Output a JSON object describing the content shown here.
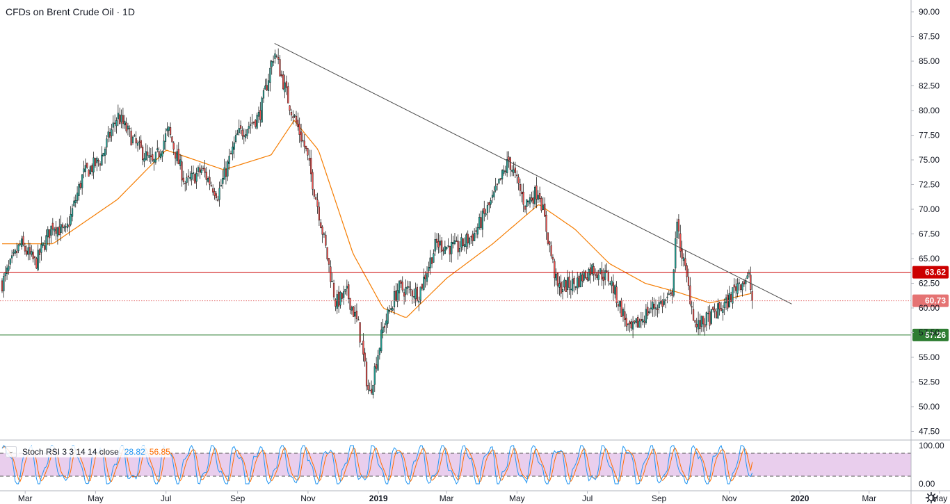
{
  "title": "CFDs on Brent Crude Oil · 1D",
  "colors": {
    "up": "#26a69a",
    "down": "#ef5350",
    "ma": "#f57c00",
    "trendline": "#4a4a4a",
    "resistance": "#cc0000",
    "support": "#2e7d32",
    "last_price": "#e57373",
    "stoch_k": "#2196f3",
    "stoch_d": "#ff6d00",
    "stoch_band": "#e1bee7"
  },
  "chart_data": [
    {
      "type": "candlestick",
      "title": "CFDs on Brent Crude Oil · 1D",
      "ylim": [
        46,
        91
      ],
      "y_ticks": [
        "47.50",
        "50.00",
        "52.50",
        "55.00",
        "57.50",
        "60.00",
        "62.50",
        "65.00",
        "67.50",
        "70.00",
        "72.50",
        "75.00",
        "77.50",
        "80.00",
        "82.50",
        "85.00",
        "87.50",
        "90.00"
      ],
      "x_ticks": [
        "Mar",
        "May",
        "Jul",
        "Sep",
        "Nov",
        "2019",
        "Mar",
        "May",
        "Jul",
        "Sep",
        "Nov",
        "2020",
        "Mar",
        "May"
      ],
      "price_path": [
        [
          "2018-02-09",
          62.5
        ],
        [
          "2018-02-25",
          66.5
        ],
        [
          "2018-03-10",
          64.5
        ],
        [
          "2018-03-25",
          68.5
        ],
        [
          "2018-04-05",
          67.5
        ],
        [
          "2018-04-20",
          73.5
        ],
        [
          "2018-05-05",
          75.0
        ],
        [
          "2018-05-20",
          79.5
        ],
        [
          "2018-06-05",
          76.5
        ],
        [
          "2018-06-20",
          74.5
        ],
        [
          "2018-07-03",
          78.0
        ],
        [
          "2018-07-18",
          72.5
        ],
        [
          "2018-08-01",
          74.0
        ],
        [
          "2018-08-15",
          71.5
        ],
        [
          "2018-09-01",
          77.5
        ],
        [
          "2018-09-20",
          79.5
        ],
        [
          "2018-10-03",
          86.0
        ],
        [
          "2018-10-15",
          81.0
        ],
        [
          "2018-10-30",
          76.0
        ],
        [
          "2018-11-10",
          70.0
        ],
        [
          "2018-11-25",
          60.5
        ],
        [
          "2018-12-05",
          61.5
        ],
        [
          "2018-12-15",
          58.0
        ],
        [
          "2018-12-24",
          51.0
        ],
        [
          "2019-01-05",
          58.0
        ],
        [
          "2019-01-18",
          62.0
        ],
        [
          "2019-02-05",
          61.5
        ],
        [
          "2019-02-20",
          66.5
        ],
        [
          "2019-03-10",
          66.0
        ],
        [
          "2019-03-25",
          67.5
        ],
        [
          "2019-04-10",
          71.0
        ],
        [
          "2019-04-24",
          75.0
        ],
        [
          "2019-05-08",
          70.5
        ],
        [
          "2019-05-20",
          72.0
        ],
        [
          "2019-06-05",
          62.0
        ],
        [
          "2019-06-20",
          62.5
        ],
        [
          "2019-07-05",
          64.0
        ],
        [
          "2019-07-20",
          63.0
        ],
        [
          "2019-08-07",
          57.5
        ],
        [
          "2019-08-25",
          60.0
        ],
        [
          "2019-09-12",
          61.0
        ],
        [
          "2019-09-16",
          68.5
        ],
        [
          "2019-10-03",
          58.0
        ],
        [
          "2019-10-15",
          59.0
        ],
        [
          "2019-10-30",
          60.5
        ],
        [
          "2019-11-08",
          62.5
        ],
        [
          "2019-11-18",
          63.0
        ],
        [
          "2019-11-21",
          60.73
        ]
      ],
      "ma_path": [
        [
          "2018-02-09",
          66.5
        ],
        [
          "2018-03-25",
          66.5
        ],
        [
          "2018-05-20",
          71.0
        ],
        [
          "2018-07-01",
          76.0
        ],
        [
          "2018-08-20",
          74.0
        ],
        [
          "2018-09-30",
          75.5
        ],
        [
          "2018-10-20",
          79.0
        ],
        [
          "2018-11-10",
          76.0
        ],
        [
          "2018-12-10",
          65.5
        ],
        [
          "2019-01-05",
          60.0
        ],
        [
          "2019-01-25",
          59.0
        ],
        [
          "2019-03-01",
          63.0
        ],
        [
          "2019-04-10",
          66.5
        ],
        [
          "2019-05-20",
          70.5
        ],
        [
          "2019-06-20",
          68.0
        ],
        [
          "2019-07-20",
          64.5
        ],
        [
          "2019-08-20",
          62.5
        ],
        [
          "2019-09-20",
          61.5
        ],
        [
          "2019-10-15",
          60.5
        ],
        [
          "2019-11-21",
          61.5
        ]
      ],
      "trendline": {
        "start": [
          "2018-10-03",
          86.8
        ],
        "end": [
          "2019-12-25",
          60.4
        ]
      },
      "levels": [
        {
          "name": "resistance",
          "value": 63.62,
          "label": "63.62"
        },
        {
          "name": "support",
          "value": 57.26,
          "label": "57.26"
        },
        {
          "name": "last-price",
          "value": 60.73,
          "label": "60.73"
        }
      ]
    },
    {
      "type": "line",
      "title": "Stoch RSI 3 3 14 14 close",
      "ylim": [
        0,
        100
      ],
      "y_ticks": [
        "0.00",
        "100.00"
      ],
      "band": [
        20,
        80
      ],
      "series": [
        {
          "name": "%K",
          "last": 28.82
        },
        {
          "name": "%D",
          "last": 56.85
        }
      ]
    }
  ],
  "indicator": {
    "title": "Stoch RSI 3 3 14 14 close",
    "k_value": "28.82",
    "d_value": "56.85"
  },
  "icons": {
    "toggle": "chevron-down-icon",
    "settings": "gear-icon"
  }
}
